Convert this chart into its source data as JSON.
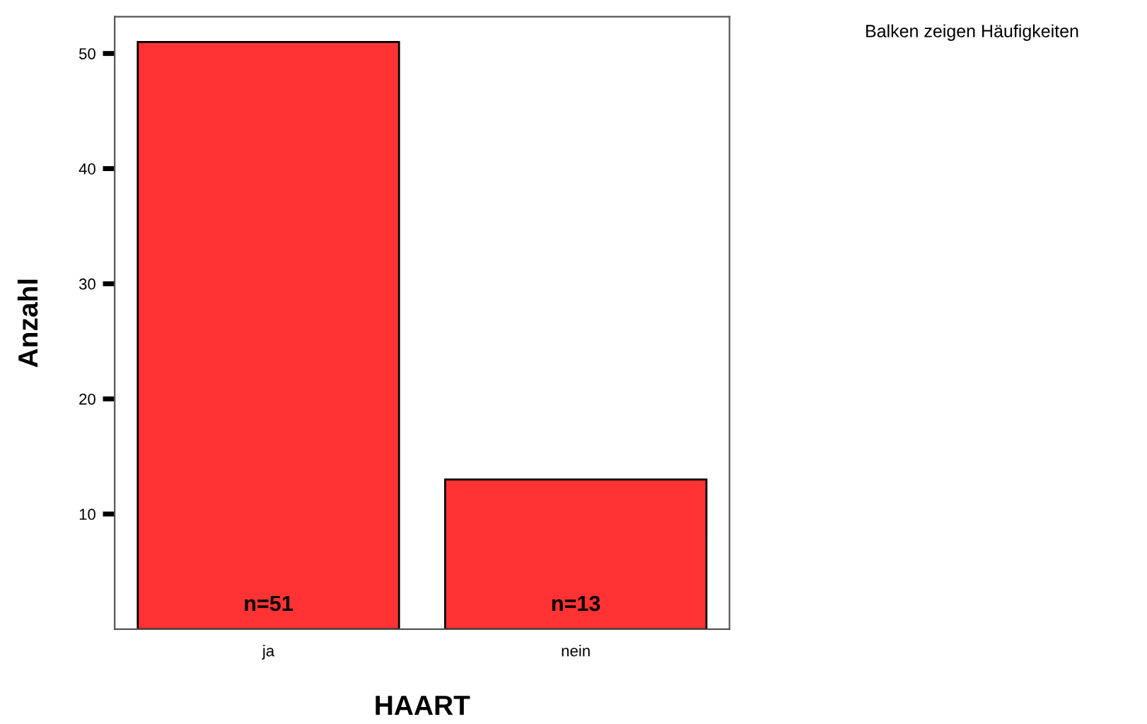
{
  "chart_data": {
    "type": "bar",
    "xlabel": "HAART",
    "ylabel": "Anzahl",
    "categories": [
      "ja",
      "nein"
    ],
    "values": [
      51,
      13
    ],
    "value_labels": [
      "n=51",
      "n=13"
    ],
    "color": "#ff3333",
    "ylim": [
      0,
      53.2
    ],
    "yticks": [
      10,
      20,
      30,
      40,
      50
    ],
    "grid": false,
    "legend": false,
    "annotations": [
      "Balken zeigen Häufigkeiten"
    ]
  }
}
